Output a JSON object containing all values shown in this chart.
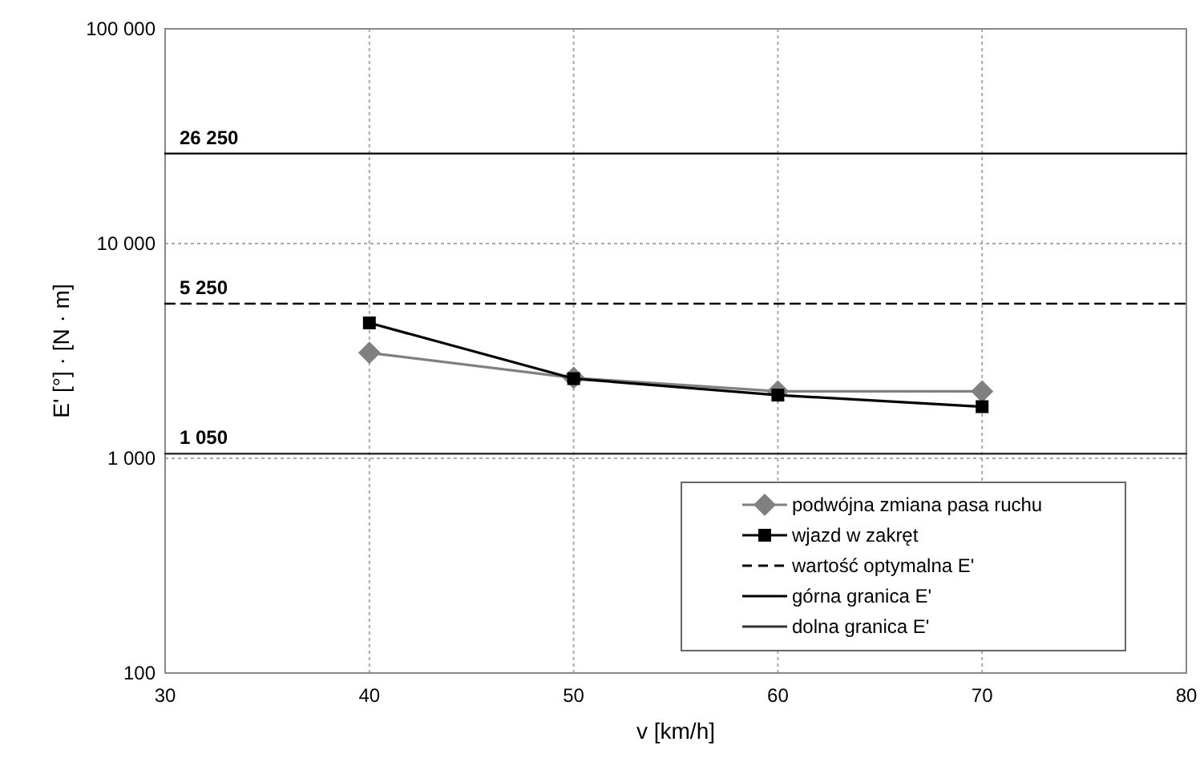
{
  "chart_data": {
    "type": "line",
    "xlabel": "v [km/h]",
    "ylabel": "E' [°] · [N · m]",
    "log": true,
    "grid": true,
    "legend": "bottom right",
    "xlim": [
      30,
      80
    ],
    "xticks": [
      30,
      40,
      50,
      60,
      70,
      80
    ],
    "ylim": [
      100,
      100000
    ],
    "yticks": [
      {
        "value": 100,
        "label": "100"
      },
      {
        "value": 1000,
        "label": "1 000"
      },
      {
        "value": 10000,
        "label": "10 000"
      },
      {
        "value": 100000,
        "label": "100 000"
      }
    ],
    "series": [
      {
        "name": "podwójna zmiana pasa ruchu",
        "color": "#808080",
        "marker": "diamond",
        "line_style": "solid",
        "x": [
          40,
          50,
          60,
          70
        ],
        "values": [
          3100,
          2370,
          2050,
          2050
        ]
      },
      {
        "name": "wjazd w zakręt",
        "color": "#000000",
        "marker": "square",
        "line_style": "solid",
        "x": [
          40,
          50,
          60,
          70
        ],
        "values": [
          4270,
          2350,
          1970,
          1740
        ]
      },
      {
        "name": "wartość optymalna E'",
        "color": "#000000",
        "marker": "none",
        "line_style": "dashed",
        "x": [
          30,
          80
        ],
        "values": [
          5250,
          5250
        ]
      },
      {
        "name": "górna granica E'",
        "color": "#000000",
        "marker": "none",
        "line_style": "solid",
        "x": [
          30,
          80
        ],
        "values": [
          26250,
          26250
        ]
      },
      {
        "name": "dolna granica E'",
        "color": "#333333",
        "marker": "none",
        "line_style": "solid",
        "x": [
          30,
          80
        ],
        "values": [
          1050,
          1050
        ]
      }
    ],
    "annotations": [
      {
        "text": "26 250",
        "y": 26250
      },
      {
        "text": "5 250",
        "y": 5250
      },
      {
        "text": "1 050",
        "y": 1050
      }
    ]
  }
}
